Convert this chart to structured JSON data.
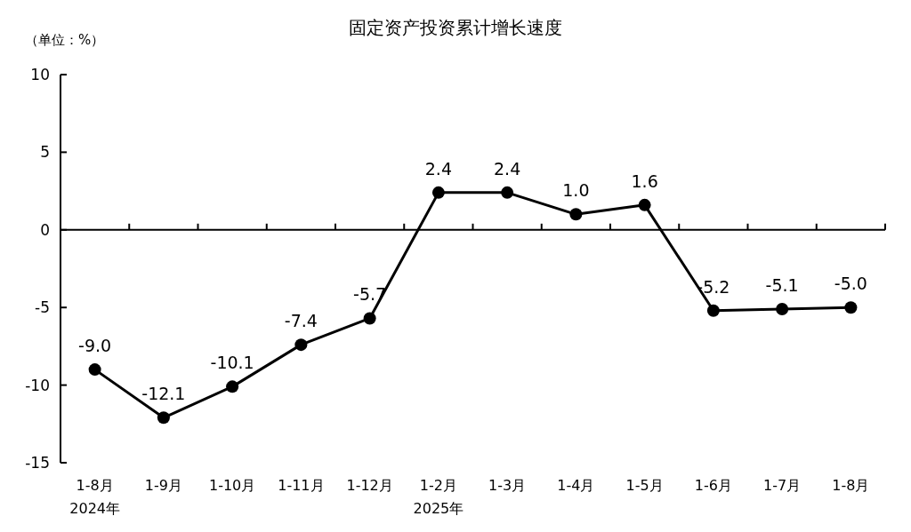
{
  "chart_data": {
    "type": "line",
    "title": "固定资产投资累计增长速度",
    "ylabel": "（单位：%）",
    "categories": [
      "1-8月\n2024年",
      "1-9月",
      "1-10月",
      "1-11月",
      "1-12月",
      "1-2月\n2025年",
      "1-3月",
      "1-4月",
      "1-5月",
      "1-6月",
      "1-7月",
      "1-8月"
    ],
    "series": [
      {
        "color": "#000000",
        "values": [
          -9.0,
          -12.1,
          -10.1,
          -7.4,
          -5.7,
          2.4,
          2.4,
          1.0,
          1.6,
          -5.2,
          -5.1,
          -5.0
        ]
      }
    ],
    "value_labels": [
      "-9.0",
      "-12.1",
      "-10.1",
      "-7.4",
      "-5.7",
      "2.4",
      "2.4",
      "1.0",
      "1.6",
      "-5.2",
      "-5.1",
      "-5.0"
    ],
    "ylim": [
      -15,
      10
    ],
    "yticks": [
      -15,
      -10,
      -5,
      0,
      5,
      10
    ],
    "marker": "circle",
    "line_style": "solid"
  }
}
